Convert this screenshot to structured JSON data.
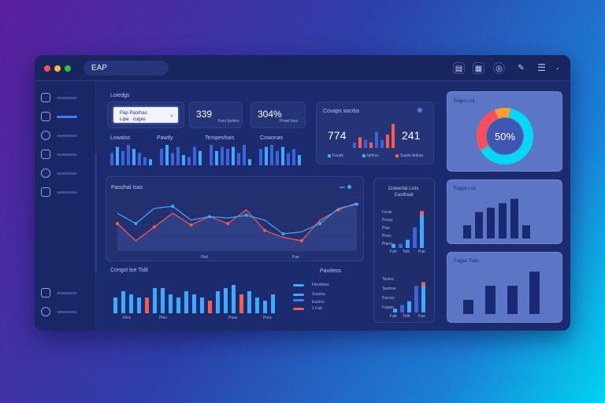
{
  "window": {
    "search_text": "EAP",
    "traffic_lights": [
      "#ff4d5a",
      "#ffbe2e",
      "#27c93f"
    ]
  },
  "toolbar": {
    "icons": [
      "document-icon",
      "grid-icon",
      "globe-icon",
      "pen-icon",
      "menu-icon",
      "chevron-down-icon"
    ]
  },
  "sidebar": {
    "items": [
      {
        "icon": "chart-icon",
        "active": false
      },
      {
        "icon": "monitor-icon",
        "active": true
      },
      {
        "icon": "mail-icon",
        "active": false
      },
      {
        "icon": "calendar-icon",
        "active": false
      },
      {
        "icon": "clock-icon",
        "active": false
      },
      {
        "icon": "image-icon",
        "active": false
      }
    ],
    "bottom_items": [
      {
        "icon": "home-icon"
      },
      {
        "icon": "settings-icon"
      }
    ]
  },
  "overview": {
    "section_label": "Loiedgs",
    "dropdown": {
      "line1": "Pap Paorhas",
      "line2": "Lipa · cugas"
    },
    "kpis": [
      {
        "value": "339",
        "sub": "Faro Ipohes"
      },
      {
        "value": "304%",
        "sub": "Prawl foss"
      }
    ],
    "mini_groups": [
      {
        "label": "Lowaiss",
        "values": [
          6,
          9,
          7,
          10,
          8,
          6,
          4,
          3
        ]
      },
      {
        "label": "Pawtly",
        "values": [
          8,
          10,
          6,
          9,
          5,
          4,
          9,
          7
        ]
      },
      {
        "label": "Tempeshais",
        "values": [
          10,
          7,
          9,
          8,
          9,
          6,
          10,
          3
        ]
      },
      {
        "label": "Cowonas",
        "values": [
          8,
          9,
          10,
          7,
          9,
          6,
          8,
          5
        ]
      }
    ]
  },
  "stats_card": {
    "title": "Covaps sacrbs",
    "value_left": "774",
    "value_right": "241",
    "legend": [
      "Fouds",
      "Iptfess",
      "Sspds fedras"
    ]
  },
  "donut_card": {
    "title": "Fegro Lsit",
    "value_label": "50%",
    "percent": 50
  },
  "line_chart": {
    "title": "Pasohal Isas",
    "x_labels": [
      "Flwl",
      "Pae"
    ]
  },
  "mid_bar_card": {
    "title": "Dowwrlal Lists",
    "subtitle": "Easthaat",
    "labels_top": [
      "Fenie",
      "Prono",
      "Piae",
      "Pneo",
      "Piano"
    ],
    "labels_bottom": [
      "Tanies",
      "Teamse",
      "Paresn",
      "Fasinn"
    ],
    "x_labels_top": [
      "Fah",
      "Tolk",
      "Pae"
    ],
    "x_labels_bottom": [
      "Fab",
      "Tofb",
      "Fae"
    ]
  },
  "bottom_bar_chart": {
    "title": "Congst loe Tidil",
    "x_labels": [
      "Flea",
      "Pleo",
      "Paza",
      "Prea"
    ],
    "legend_title": "Pavdeos",
    "legend": [
      "Fleoldoes",
      "Ssunsu",
      "Euriros",
      "1 Fab"
    ]
  },
  "right_panels": [
    {
      "title": "Fagpo Lsit"
    },
    {
      "title": "Fogpe Tlats"
    }
  ],
  "chart_data": [
    {
      "type": "line",
      "title": "Pasohal Isas",
      "x": [
        1,
        2,
        3,
        4,
        5,
        6,
        7,
        8,
        9,
        10,
        11,
        12,
        13,
        14
      ],
      "series": [
        {
          "name": "",
          "color": "#ff5a4a",
          "values": [
            40,
            15,
            35,
            55,
            38,
            50,
            40,
            60,
            30,
            20,
            15,
            45,
            60,
            70
          ]
        },
        {
          "name": "",
          "color": "#3fa9ff",
          "values": [
            55,
            40,
            62,
            65,
            45,
            50,
            48,
            52,
            45,
            25,
            28,
            40,
            62,
            68
          ]
        }
      ],
      "ylim": [
        0,
        80
      ],
      "grid": true
    },
    {
      "type": "bar",
      "title": "Congst loe Tidil",
      "categories": [
        "1",
        "2",
        "3",
        "4",
        "5",
        "6",
        "7",
        "8",
        "9",
        "10",
        "11",
        "12",
        "13",
        "14",
        "15",
        "16",
        "17",
        "18",
        "19",
        "20",
        "21"
      ],
      "series": [
        {
          "name": "",
          "color": "#3fa9ff",
          "values": [
            5,
            7,
            6,
            5,
            3,
            8,
            8,
            6,
            5,
            7,
            6,
            5,
            4,
            7,
            8,
            9,
            10,
            7,
            5,
            4,
            6
          ]
        },
        {
          "name": "",
          "color": "#ff5a4a",
          "values": [
            0,
            0,
            0,
            0,
            5,
            0,
            0,
            0,
            0,
            0,
            0,
            0,
            4,
            0,
            0,
            0,
            6,
            0,
            0,
            0,
            0
          ]
        }
      ],
      "ylim": [
        0,
        11
      ]
    },
    {
      "type": "bar",
      "title": "Covaps sacrbs",
      "categories": [
        "1",
        "2",
        "3",
        "4",
        "5",
        "6",
        "7",
        "8"
      ],
      "values": [
        2,
        4,
        3,
        2,
        6,
        3,
        5,
        9
      ],
      "highlight": [
        false,
        true,
        false,
        true,
        false,
        false,
        true,
        true
      ],
      "ylim": [
        0,
        10
      ]
    },
    {
      "type": "bar",
      "title": "Dowwrlal Lists",
      "categories": [
        "1",
        "2",
        "3",
        "4",
        "5"
      ],
      "values": [
        1,
        1,
        2,
        5,
        9
      ],
      "ylim": [
        0,
        10
      ]
    },
    {
      "type": "bar",
      "title": "",
      "categories": [
        "1",
        "2",
        "3",
        "4",
        "5"
      ],
      "values": [
        1,
        2,
        3,
        7,
        8
      ],
      "ylim": [
        0,
        10
      ]
    },
    {
      "type": "bar",
      "title": "Fagpo Lsit",
      "categories": [
        "1",
        "2",
        "3",
        "4",
        "5",
        "6",
        "7"
      ],
      "values": [
        3,
        6,
        7,
        8,
        9,
        3,
        0
      ],
      "ylim": [
        0,
        10
      ]
    },
    {
      "type": "bar",
      "title": "Fogpe Tlats",
      "categories": [
        "1",
        "2",
        "3",
        "4"
      ],
      "values": [
        3,
        6,
        6,
        9
      ],
      "ylim": [
        0,
        10
      ]
    }
  ]
}
